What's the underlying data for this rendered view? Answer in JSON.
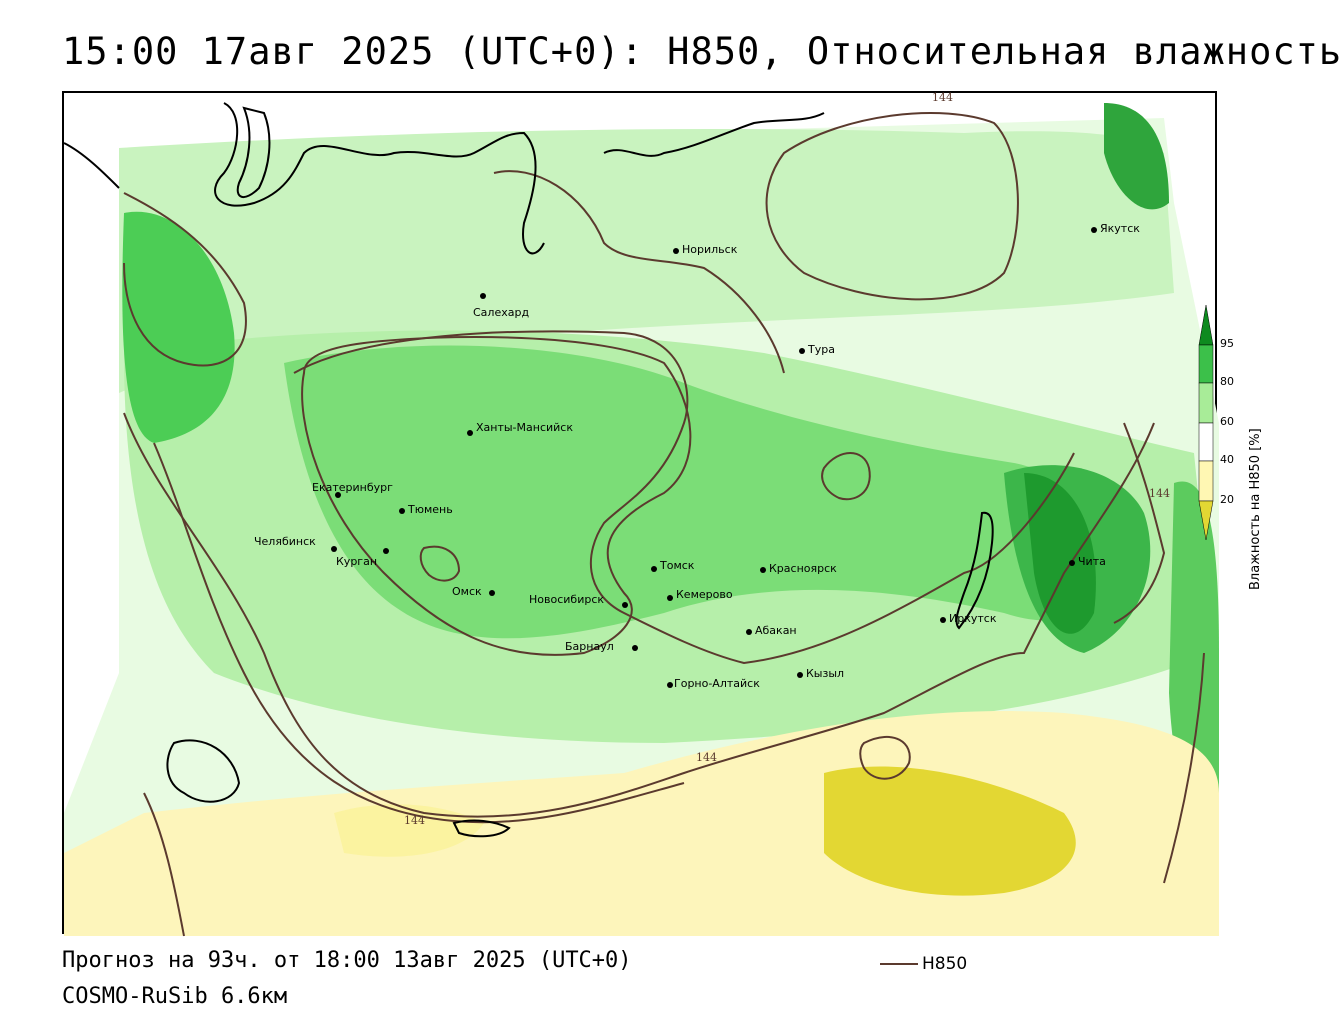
{
  "title": "15:00 17авг 2025 (UTC+0): H850, Относительная влажность",
  "footer": {
    "forecast": "Прогноз на 93ч. от 18:00 13авг 2025 (UTC+0)",
    "model": "COSMO-RuSib 6.6км"
  },
  "legend": {
    "title": "Влажность на H850 [%]",
    "ticks": [
      "95",
      "80",
      "60",
      "40",
      "20"
    ],
    "colors": {
      "95": "#0e8a1f",
      "80": "#3cc04a",
      "60": "#a8ec98",
      "40": "#fff7b3",
      "20": "#e3d733"
    }
  },
  "line_legend": {
    "label": "H850",
    "color": "#5b3a2e"
  },
  "contour_labels": [
    "144",
    "144",
    "144",
    "144"
  ],
  "cities": [
    {
      "name": "Норильск"
    },
    {
      "name": "Якутск"
    },
    {
      "name": "Салехард"
    },
    {
      "name": "Тура"
    },
    {
      "name": "Ханты-Мансийск"
    },
    {
      "name": "Екатеринбург"
    },
    {
      "name": "Тюмень"
    },
    {
      "name": "Челябинск"
    },
    {
      "name": "Курган"
    },
    {
      "name": "Омск"
    },
    {
      "name": "Новосибирск"
    },
    {
      "name": "Томск"
    },
    {
      "name": "Кемерово"
    },
    {
      "name": "Красноярск"
    },
    {
      "name": "Абакан"
    },
    {
      "name": "Барнаул"
    },
    {
      "name": "Горно-Алтайск"
    },
    {
      "name": "Кызыл"
    },
    {
      "name": "Иркутск"
    },
    {
      "name": "Чита"
    }
  ]
}
